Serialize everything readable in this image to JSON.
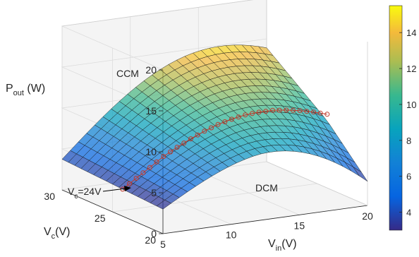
{
  "chart_data": {
    "type": "surface",
    "zlabel": "P",
    "zlabel_sub": "out",
    "zlabel_unit": " (W)",
    "xlabel": "V",
    "xlabel_sub": "in",
    "xlabel_unit": "(V)",
    "ylabel": "V",
    "ylabel_sub": "c",
    "ylabel_unit": "(V)",
    "region_labels": [
      "CCM",
      "DCM"
    ],
    "annotation": {
      "main": "V",
      "sub": "c",
      "rest": "=24V"
    },
    "x_ticks": [
      5,
      10,
      15,
      20
    ],
    "y_ticks": [
      20,
      25,
      30
    ],
    "z_ticks": [
      0,
      5,
      10,
      15,
      20
    ],
    "xlim": [
      5,
      20
    ],
    "ylim": [
      20,
      30
    ],
    "zlim": [
      0,
      20
    ],
    "colorbar": {
      "ticks": [
        4,
        6,
        8,
        10,
        12,
        14
      ],
      "range": [
        3,
        15.5
      ],
      "colormap": "parula"
    },
    "grid": true,
    "surface": {
      "vin_range": [
        5,
        20
      ],
      "vc_range": [
        20,
        30
      ],
      "vin_steps": 25,
      "vc_steps": 16,
      "peak_power_w": 15.5,
      "peak_vin_v": 15.5
    },
    "boundary_line": {
      "vc": 24,
      "marker": "circle",
      "color": "#c0392b",
      "points": [
        [
          5,
          3.3
        ],
        [
          6,
          4.4
        ],
        [
          7,
          5.5
        ],
        [
          8,
          6.6
        ],
        [
          9,
          7.5
        ],
        [
          10,
          8.3
        ],
        [
          11,
          9.0
        ],
        [
          12,
          9.6
        ],
        [
          13,
          10.0
        ],
        [
          14,
          10.3
        ],
        [
          15,
          10.4
        ],
        [
          16,
          10.4
        ],
        [
          17,
          10.2
        ],
        [
          18,
          9.9
        ],
        [
          19,
          9.5
        ],
        [
          20,
          9.0
        ]
      ]
    }
  }
}
